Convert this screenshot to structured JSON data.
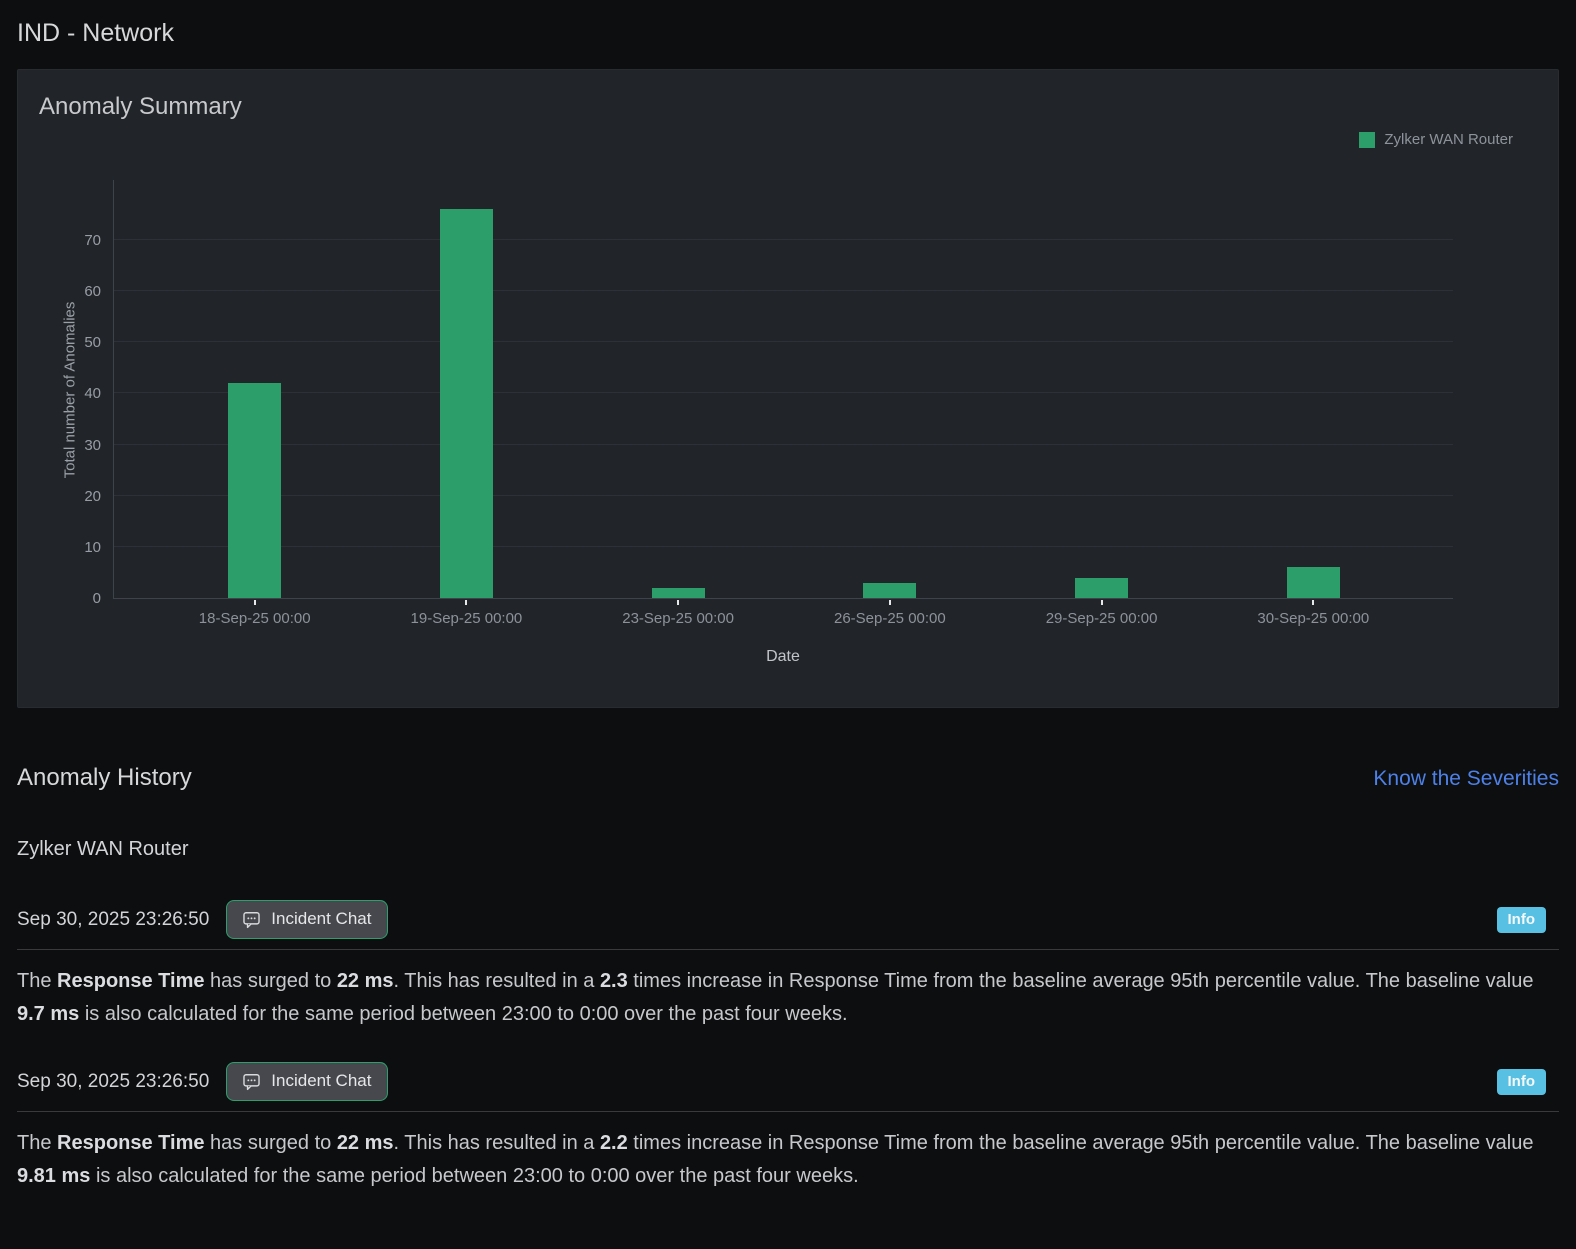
{
  "page": {
    "title": "IND - Network"
  },
  "anomaly_summary": {
    "title": "Anomaly Summary",
    "legend": {
      "label": "Zylker WAN Router",
      "color": "#2b9e69"
    }
  },
  "chart_data": {
    "type": "bar",
    "title": "Anomaly Summary",
    "categories": [
      "18-Sep-25 00:00",
      "19-Sep-25 00:00",
      "23-Sep-25 00:00",
      "26-Sep-25 00:00",
      "29-Sep-25 00:00",
      "30-Sep-25 00:00"
    ],
    "series": [
      {
        "name": "Zylker WAN Router",
        "color": "#2b9e69",
        "values": [
          42,
          76,
          2,
          3,
          4,
          6
        ]
      }
    ],
    "xlabel": "Date",
    "ylabel": "Total number of Anomalies",
    "ylim": [
      0,
      81
    ],
    "yticks": [
      0,
      10,
      20,
      30,
      40,
      50,
      60,
      70
    ],
    "grid": true,
    "legend_position": "top-right"
  },
  "anomaly_history": {
    "title": "Anomaly History",
    "severities_link": "Know the Severities",
    "device_name": "Zylker WAN Router",
    "entries": [
      {
        "timestamp": "Sep 30, 2025 23:26:50",
        "chat_button_label": "Incident Chat",
        "severity_badge": "Info",
        "severity_color": "#58c0e2",
        "message": [
          {
            "text": "The ",
            "bold": false
          },
          {
            "text": "Response Time",
            "bold": true
          },
          {
            "text": " has surged to ",
            "bold": false
          },
          {
            "text": "22 ms",
            "bold": true
          },
          {
            "text": ". This has resulted in a ",
            "bold": false
          },
          {
            "text": "2.3",
            "bold": true
          },
          {
            "text": " times increase in Response Time from the baseline average 95th percentile value. The baseline value ",
            "bold": false
          },
          {
            "text": "9.7 ms",
            "bold": true
          },
          {
            "text": " is also calculated for the same period between 23:00 to 0:00 over the past four weeks.",
            "bold": false
          }
        ]
      },
      {
        "timestamp": "Sep 30, 2025 23:26:50",
        "chat_button_label": "Incident Chat",
        "severity_badge": "Info",
        "severity_color": "#58c0e2",
        "message": [
          {
            "text": "The ",
            "bold": false
          },
          {
            "text": "Response Time",
            "bold": true
          },
          {
            "text": " has surged to ",
            "bold": false
          },
          {
            "text": "22 ms",
            "bold": true
          },
          {
            "text": ". This has resulted in a ",
            "bold": false
          },
          {
            "text": "2.2",
            "bold": true
          },
          {
            "text": " times increase in Response Time from the baseline average 95th percentile value. The baseline value ",
            "bold": false
          },
          {
            "text": "9.81 ms",
            "bold": true
          },
          {
            "text": " is also calculated for the same period between 23:00 to 0:00 over the past four weeks.",
            "bold": false
          }
        ]
      }
    ]
  }
}
